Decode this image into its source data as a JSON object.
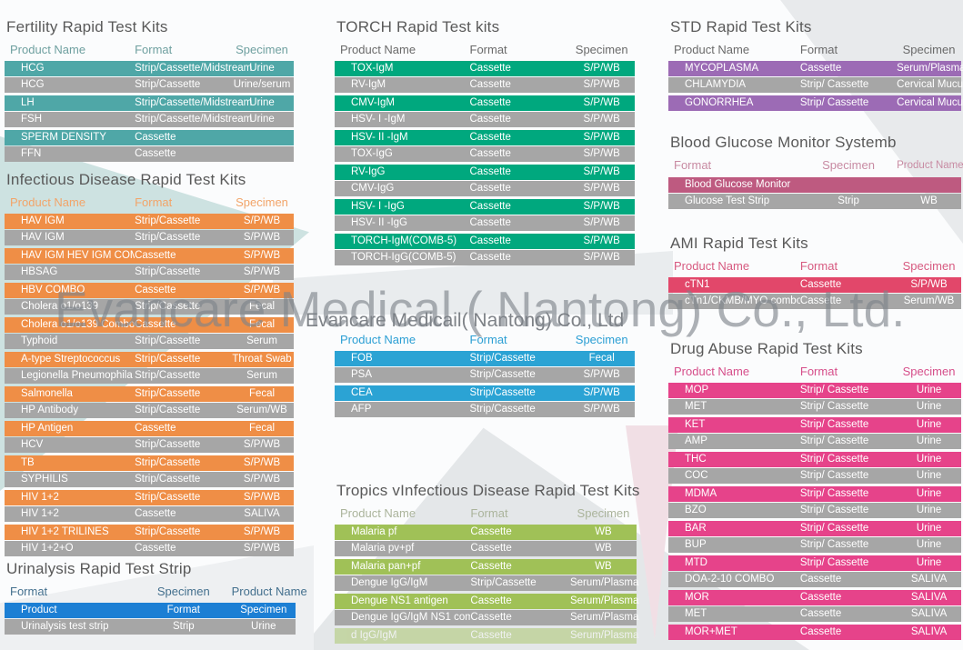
{
  "watermark": {
    "primary": "Evancare Medical ( Nantong) Co., Ltd.",
    "secondary": "Evancare Medicail( Nantong) Co., Ltd"
  },
  "background_colors": {
    "teal_wedge": "#CDE2E1",
    "gray_diagonal": "#E7EAEC",
    "pink_wedge": "#F1DFE5"
  },
  "tables": [
    {
      "id": "fertility",
      "title": "Fertility Rapid Test Kits",
      "columns": [
        "Product Name",
        "Format",
        "Specimen"
      ],
      "header_color": "#6FA0A0",
      "row_color": "#4FA7A7",
      "alt_row_color": "#A6A6A6",
      "rows": [
        [
          "HCG",
          "Strip/Cassette/Midstream",
          "Urine"
        ],
        [
          "HCG",
          "Strip/Cassette",
          "Urine/serum"
        ],
        [
          "LH",
          "Strip/Cassette/Midstream",
          "Urine"
        ],
        [
          "FSH",
          "Strip/Cassette/Midstream",
          "Urine"
        ],
        [
          "SPERM DENSITY",
          "Cassette",
          ""
        ],
        [
          "FFN",
          "Cassette",
          ""
        ]
      ]
    },
    {
      "id": "infectious",
      "title": "Infectious Disease Rapid Test Kits",
      "columns": [
        "Product Name",
        "Format",
        "Specimen"
      ],
      "header_color": "#F2A469",
      "row_color": "#EF8E46",
      "alt_row_color": "#A6A6A6",
      "rows": [
        [
          "HAV IGM",
          "Strip/Cassette",
          "S/P/WB"
        ],
        [
          "HAV IGM",
          "Strip/Cassette",
          "S/P/WB"
        ],
        [
          "HAV IGM HEV IGM COMBO",
          "Cassette",
          "S/P/WB"
        ],
        [
          "HBSAG",
          "Strip/Cassette",
          "S/P/WB"
        ],
        [
          "HBV COMBO",
          "Cassette",
          "S/P/WB"
        ],
        [
          "Cholera o1/o139",
          "Strip/Cassette",
          "Fecal"
        ],
        [
          "Cholera o1/o139 Combo",
          "Cassette",
          "Fecal"
        ],
        [
          "Typhoid",
          "Strip/Cassette",
          "Serum"
        ],
        [
          "A-type Streptococcus",
          "Strip/Cassette",
          "Throat Swab"
        ],
        [
          "Legionella Pneumophila",
          "Strip/Cassette",
          "Serum"
        ],
        [
          "Salmonella",
          "Strip/Cassette",
          "Fecal"
        ],
        [
          "HP Antibody",
          "Strip/Cassette",
          "Serum/WB"
        ],
        [
          "HP Antigen",
          "Cassette",
          "Fecal"
        ],
        [
          "HCV",
          "Strip/Cassette",
          "S/P/WB"
        ],
        [
          "TB",
          "Strip/Cassette",
          "S/P/WB"
        ],
        [
          "SYPHILIS",
          "Strip/Cassette",
          "S/P/WB"
        ],
        [
          "HIV 1+2",
          "Strip/Cassette",
          "S/P/WB"
        ],
        [
          "HIV 1+2",
          "Cassette",
          "SALIVA"
        ],
        [
          "HIV 1+2 TRILINES",
          "Strip/Cassette",
          "S/P/WB"
        ],
        [
          "HIV 1+2+O",
          "Cassette",
          "S/P/WB"
        ]
      ]
    },
    {
      "id": "urinalysis",
      "title": "Urinalysis Rapid Test Strip",
      "columns": [
        "Format",
        "Specimen",
        "Product Name"
      ],
      "header_color": "#44708E",
      "row_color": "#1C7FD4",
      "alt_row_color": "#A6A6A6",
      "rows": [
        [
          "Product",
          "Format",
          "Specimen"
        ],
        [
          "Urinalysis test strip",
          "Strip",
          "Urine"
        ]
      ]
    },
    {
      "id": "torch",
      "title": "TORCH Rapid Test kits",
      "columns": [
        "Product Name",
        "Format",
        "Specimen"
      ],
      "header_color": "#6A6A6A",
      "row_color": "#00A87E",
      "alt_row_color": "#A6A6A6",
      "rows": [
        [
          "TOX-IgM",
          "Cassette",
          "S/P/WB"
        ],
        [
          "RV-IgM",
          "Cassette",
          "S/P/WB"
        ],
        [
          "CMV-IgM",
          "Cassette",
          "S/P/WB"
        ],
        [
          "HSV- I -IgM",
          "Cassette",
          "S/P/WB"
        ],
        [
          "HSV- II -IgM",
          "Cassette",
          "S/P/WB"
        ],
        [
          "TOX-IgG",
          "Cassette",
          "S/P/WB"
        ],
        [
          "RV-IgG",
          "Cassette",
          "S/P/WB"
        ],
        [
          "CMV-IgG",
          "Cassette",
          "S/P/WB"
        ],
        [
          "HSV- I -IgG",
          "Cassette",
          "S/P/WB"
        ],
        [
          "HSV- II -IgG",
          "Cassette",
          "S/P/WB"
        ],
        [
          "TORCH-IgM(COMB-5)",
          "Cassette",
          "S/P/WB"
        ],
        [
          "TORCH-IgG(COMB-5)",
          "Cassette",
          "S/P/WB"
        ]
      ]
    },
    {
      "id": "tumor",
      "title": "",
      "columns": [
        "Product Name",
        "Format",
        "Specimen"
      ],
      "header_color": "#2C9FD4",
      "row_color": "#2BA3D4",
      "alt_row_color": "#A6A6A6",
      "rows": [
        [
          "FOB",
          "Strip/Cassette",
          "Fecal"
        ],
        [
          "PSA",
          "Strip/Cassette",
          "S/P/WB"
        ],
        [
          "CEA",
          "Strip/Cassette",
          "S/P/WB"
        ],
        [
          "AFP",
          "Strip/Cassette",
          "S/P/WB"
        ]
      ]
    },
    {
      "id": "tropics",
      "title": "Tropics vInfectious Disease Rapid Test Kits",
      "columns": [
        "Product Name",
        "Format",
        "Specimen"
      ],
      "header_color": "#ABB49C",
      "row_color": "#A0C157",
      "alt_row_color": "#A6A6A6",
      "faded_last": true,
      "rows": [
        [
          "Malaria pf",
          "Cassette",
          "WB"
        ],
        [
          "Malaria  pv+pf",
          "Cassette",
          "WB"
        ],
        [
          "Malaria  pan+pf",
          "Cassette",
          "WB"
        ],
        [
          "Dengue IgG/IgM",
          "Strip/Cassette",
          "Serum/Plasma"
        ],
        [
          "Dengue NS1 antigen",
          "Cassette",
          "Serum/Plasma"
        ],
        [
          "Dengue IgG/IgM  NS1 combo",
          "Cassette",
          "Serum/Plasma"
        ],
        [
          "d  IgG/IgM",
          "Cassette",
          "Serum/Plasma"
        ]
      ]
    },
    {
      "id": "std",
      "title": "STD Rapid Test Kits",
      "columns": [
        "Product Name",
        "Format",
        "Specimen"
      ],
      "header_color": "#6A6A6A",
      "row_color": "#9C6BB5",
      "alt_row_color": "#A6A6A6",
      "rows": [
        [
          "MYCOPLASMA",
          "Cassette",
          "Serum/Plasma"
        ],
        [
          "CHLAMYDIA",
          "Strip/ Cassette",
          "Cervical Mucus"
        ],
        [
          "GONORRHEA",
          "Strip/ Cassette",
          "Cervical Mucus"
        ]
      ]
    },
    {
      "id": "bloodglucose",
      "title": "Blood Glucose Monitor Systemb",
      "columns": [
        "Format",
        "Specimen",
        "Product Name"
      ],
      "header_color": "#C88BA3",
      "row_color": "#BE5A80",
      "alt_row_color": "#A6A6A6",
      "rows": [
        [
          "Blood Glucose Monitor",
          "",
          ""
        ],
        [
          "Glucose Test Strip",
          "Strip",
          "WB"
        ]
      ]
    },
    {
      "id": "ami",
      "title": "AMI Rapid Test Kits",
      "columns": [
        "Product Name",
        "Format",
        "Specimen"
      ],
      "header_color": "#D75A80",
      "row_color": "#E2476A",
      "alt_row_color": "#A6A6A6",
      "rows": [
        [
          "cTN1",
          "Cassette",
          "S/P/WB"
        ],
        [
          "cTn1/CKMB/MYO combo",
          "Cassette",
          "Serum/WB"
        ]
      ]
    },
    {
      "id": "drugabuse",
      "title": "Drug Abuse Rapid Test Kits",
      "columns": [
        "Product Name",
        "Format",
        "Specimen"
      ],
      "header_color": "#D64E8A",
      "row_color": "#E6438A",
      "alt_row_color": "#A6A6A6",
      "rows": [
        [
          "MOP",
          "Strip/ Cassette",
          "Urine"
        ],
        [
          "MET",
          "Strip/ Cassette",
          "Urine"
        ],
        [
          "KET",
          "Strip/ Cassette",
          "Urine"
        ],
        [
          "AMP",
          "Strip/ Cassette",
          "Urine"
        ],
        [
          "THC",
          "Strip/ Cassette",
          "Urine"
        ],
        [
          "COC",
          "Strip/ Cassette",
          "Urine"
        ],
        [
          "MDMA",
          "Strip/ Cassette",
          "Urine"
        ],
        [
          "BZO",
          "Strip/ Cassette",
          "Urine"
        ],
        [
          "BAR",
          "Strip/ Cassette",
          "Urine"
        ],
        [
          "BUP",
          "Strip/ Cassette",
          "Urine"
        ],
        [
          "MTD",
          "Strip/ Cassette",
          "Urine"
        ],
        [
          "DOA-2-10 COMBO",
          "Cassette",
          "SALIVA"
        ],
        [
          "MOR",
          "Cassette",
          "SALIVA"
        ],
        [
          "MET",
          "Cassette",
          "SALIVA"
        ],
        [
          "MOR+MET",
          "Cassette",
          "SALIVA"
        ]
      ]
    }
  ]
}
